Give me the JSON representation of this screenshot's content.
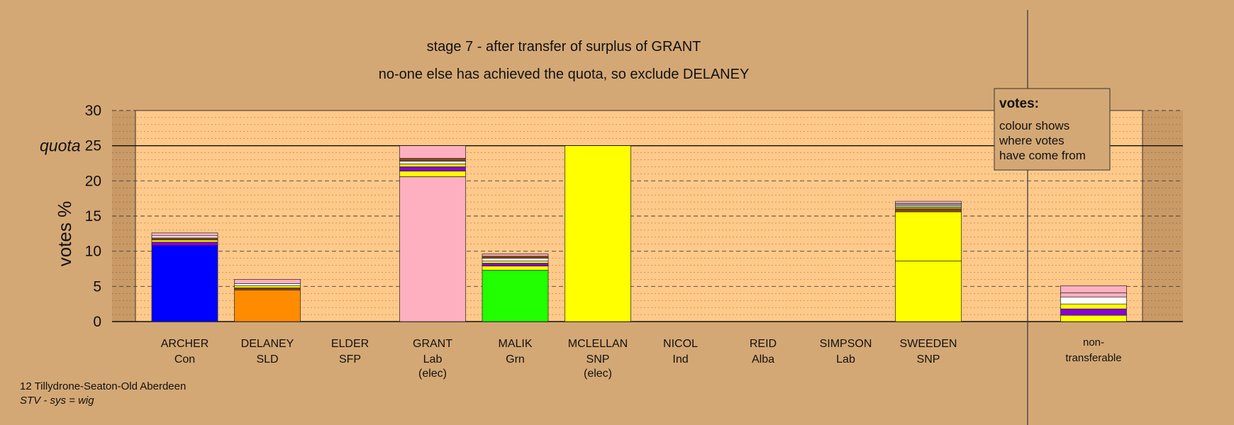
{
  "chart_data": {
    "type": "bar",
    "stacked": true,
    "title": "stage 7 - after transfer of surplus of GRANT",
    "subtitle": "no-one else has achieved the quota, so exclude DELANEY",
    "ylabel": "votes %",
    "ylim": [
      0,
      30
    ],
    "yticks": [
      "0",
      "5",
      "10",
      "15",
      "20",
      "25",
      "30"
    ],
    "quota_value": 25,
    "quota_label": "quota",
    "grid": true,
    "legend": {
      "title": "votes:",
      "lines": [
        "colour shows",
        "where votes",
        "have come from"
      ],
      "position": "top-right"
    },
    "footer": {
      "line1": "12 Tillydrone-Seaton-Old Aberdeen",
      "line2": "STV - sys = wig"
    },
    "colors": {
      "background": "#d4a875",
      "plot": "#ffc98a",
      "blue": "#0000ff",
      "orange": "#ff8c00",
      "pink": "#ffb0c0",
      "green": "#22ff00",
      "yellow": "#ffff00",
      "purple": "#8800dd",
      "white": "#ffffff",
      "brown": "#8b4513",
      "olive": "#aaaa00",
      "grey": "#999999"
    },
    "candidates": [
      {
        "name": "ARCHER",
        "party": "Con",
        "note": "",
        "segments": [
          {
            "value": 10.8,
            "color": "blue"
          },
          {
            "value": 0.5,
            "color": "purple"
          },
          {
            "value": 0.3,
            "color": "yellow"
          },
          {
            "value": 0.3,
            "color": "brown"
          },
          {
            "value": 0.3,
            "color": "white"
          },
          {
            "value": 0.4,
            "color": "pink"
          }
        ]
      },
      {
        "name": "DELANEY",
        "party": "SLD",
        "note": "",
        "segments": [
          {
            "value": 4.5,
            "color": "orange"
          },
          {
            "value": 0.3,
            "color": "brown"
          },
          {
            "value": 0.3,
            "color": "yellow"
          },
          {
            "value": 0.3,
            "color": "white"
          },
          {
            "value": 0.6,
            "color": "pink"
          }
        ]
      },
      {
        "name": "ELDER",
        "party": "SFP",
        "note": "",
        "segments": []
      },
      {
        "name": "GRANT",
        "party": "Lab",
        "note": "(elec)",
        "segments": [
          {
            "value": 20.6,
            "color": "pink"
          },
          {
            "value": 0.8,
            "color": "yellow"
          },
          {
            "value": 0.6,
            "color": "purple"
          },
          {
            "value": 0.4,
            "color": "yellow"
          },
          {
            "value": 0.4,
            "color": "white"
          },
          {
            "value": 0.4,
            "color": "brown"
          },
          {
            "value": 1.8,
            "color": "pink"
          }
        ]
      },
      {
        "name": "MALIK",
        "party": "Grn",
        "note": "",
        "segments": [
          {
            "value": 7.3,
            "color": "green"
          },
          {
            "value": 0.6,
            "color": "yellow"
          },
          {
            "value": 0.4,
            "color": "purple"
          },
          {
            "value": 0.3,
            "color": "yellow"
          },
          {
            "value": 0.4,
            "color": "white"
          },
          {
            "value": 0.3,
            "color": "brown"
          },
          {
            "value": 0.3,
            "color": "pink"
          }
        ]
      },
      {
        "name": "MCLELLAN",
        "party": "SNP",
        "note": "(elec)",
        "segments": [
          {
            "value": 25,
            "color": "yellow"
          }
        ]
      },
      {
        "name": "NICOL",
        "party": "Ind",
        "note": "",
        "segments": []
      },
      {
        "name": "REID",
        "party": "Alba",
        "note": "",
        "segments": []
      },
      {
        "name": "SIMPSON",
        "party": "Lab",
        "note": "",
        "segments": []
      },
      {
        "name": "SWEEDEN",
        "party": "SNP",
        "note": "",
        "segments": [
          {
            "value": 8.6,
            "color": "yellow"
          },
          {
            "value": 7.0,
            "color": "yellow"
          },
          {
            "value": 0.4,
            "color": "brown"
          },
          {
            "value": 0.3,
            "color": "olive"
          },
          {
            "value": 0.2,
            "color": "white"
          },
          {
            "value": 0.3,
            "color": "grey"
          },
          {
            "value": 0.3,
            "color": "pink"
          }
        ]
      },
      {
        "name": "non-",
        "party": "transferable",
        "note": "",
        "segments": [
          {
            "value": 0.9,
            "color": "yellow"
          },
          {
            "value": 0.9,
            "color": "purple"
          },
          {
            "value": 0.7,
            "color": "yellow"
          },
          {
            "value": 1.0,
            "color": "white"
          },
          {
            "value": 0.6,
            "color": "pink"
          },
          {
            "value": 1.0,
            "color": "pink"
          }
        ]
      }
    ]
  }
}
